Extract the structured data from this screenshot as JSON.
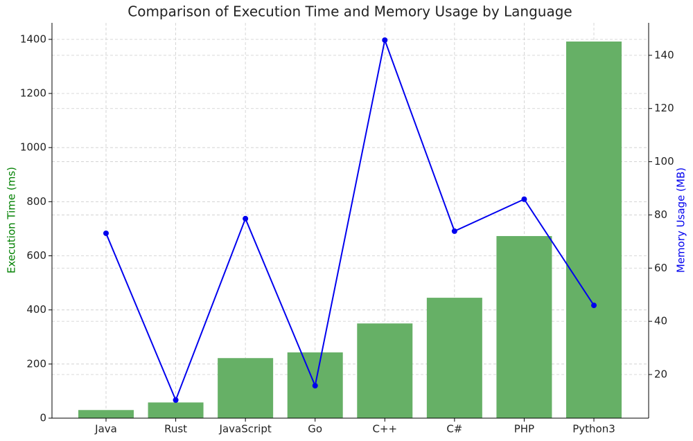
{
  "chart_data": {
    "type": "bar-line",
    "title": "Comparison of Execution Time and Memory Usage by Language",
    "ylabel": "Execution Time (ms)",
    "y2label": "Memory Usage (MB)",
    "categories": [
      "Java",
      "Rust",
      "JavaScript",
      "Go",
      "C++",
      "C#",
      "PHP",
      "Python3"
    ],
    "series": [
      {
        "name": "Execution Time (ms)",
        "type": "bar",
        "color": "#66b066",
        "values": [
          30,
          58,
          222,
          243,
          350,
          445,
          673,
          1392
        ]
      },
      {
        "name": "Memory Usage (MB)",
        "type": "line",
        "axis": "y2",
        "color": "#0000ee",
        "values": [
          73.1,
          10.4,
          78.6,
          15.8,
          145.7,
          73.9,
          85.9,
          46.0
        ]
      }
    ],
    "ylim": [
      0,
      1461
    ],
    "yticks": [
      0,
      200,
      400,
      600,
      800,
      1000,
      1200,
      1400
    ],
    "y2lim": [
      3.6,
      152.2
    ],
    "y2ticks": [
      20,
      40,
      60,
      80,
      100,
      120,
      140
    ],
    "grid": true,
    "ylabel_color": "#008000",
    "y2label_color": "#0000ee"
  }
}
